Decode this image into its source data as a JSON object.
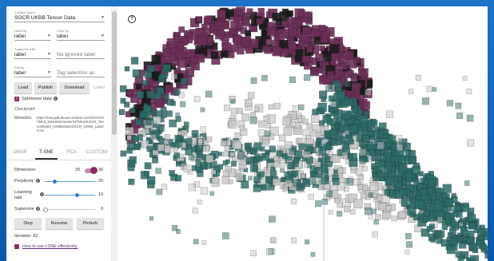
{
  "panel": {
    "tensors_found": "1 tensor found",
    "dataset": "SOCR UKBB Tensor Data",
    "label_by": {
      "label": "Label by",
      "value": "label"
    },
    "color_by": {
      "label": "Color by",
      "value": "label"
    },
    "supervise_with": {
      "label": "Supervise with",
      "value": "label"
    },
    "ignored_label_placeholder": "No ignored label",
    "edit_by": {
      "label": "Edit by",
      "value": "label"
    },
    "tag_placeholder": "Tag selection as",
    "buttons": {
      "load": "Load",
      "publish": "Publish",
      "download": "Download",
      "label": "Label"
    },
    "sphereize": "Sphereize data",
    "checkpoint_label": "Checkpoint:",
    "metadata_label": "Metadata:",
    "metadata_value": "https://raw.githubusercontent.com/SOCR/HTML5_WebSite/master/HTML5/SOCR_TensorBoard_UKBB/data/SOCR_UKBB_Labels.tsv",
    "tabs": [
      "UMAP",
      "T-SNE",
      "PCA",
      "CUSTOM"
    ],
    "active_tab": "T-SNE",
    "dimension": {
      "label": "Dimension",
      "low": "20",
      "high": "30"
    },
    "perplexity": {
      "label": "Perplexity",
      "value": "25",
      "fraction": 0.2
    },
    "learning_rate": {
      "label": "Learning rate",
      "value": "10",
      "fraction": 0.65
    },
    "supervise": {
      "label": "Supervise",
      "value": "0",
      "fraction": 0.0
    },
    "controls": {
      "stop": "Stop",
      "resume": "Resume",
      "perturb": "Perturb"
    },
    "iteration_label": "Iteration: 52",
    "help_link": "How to use t-SNE effectively."
  },
  "viz": {
    "help_icon": "?",
    "colors": {
      "purple": "#6b2f56",
      "teal": "#2d6b66",
      "grey": "#c8c8c8",
      "dark": "#1b1b1b"
    }
  }
}
